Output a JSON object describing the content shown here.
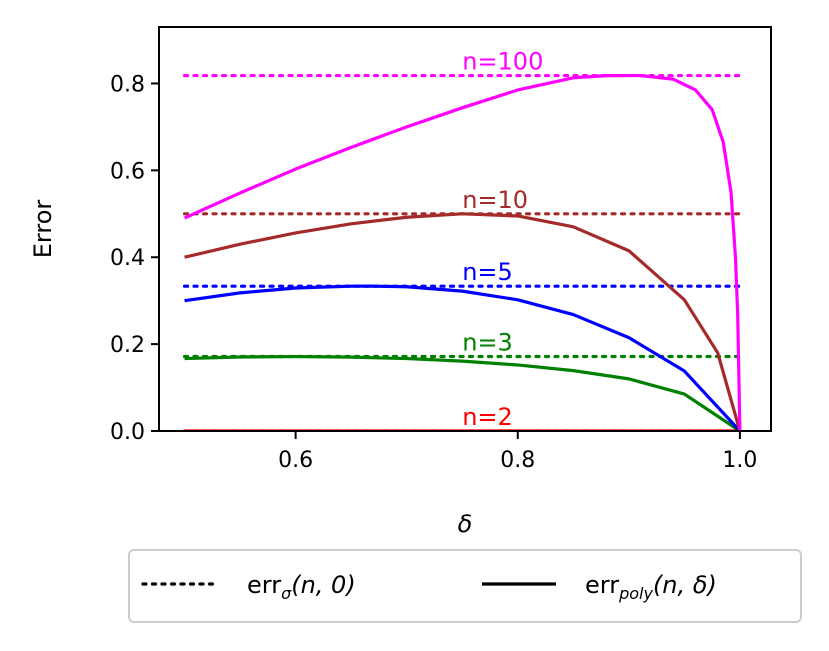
{
  "chart_data": {
    "type": "line",
    "xlabel": "δ",
    "ylabel": "Error",
    "xlim": [
      0.477,
      1.028
    ],
    "ylim": [
      0,
      0.93
    ],
    "xticks": [
      0.6,
      0.8,
      1.0
    ],
    "xtick_labels": [
      "0.6",
      "0.8",
      "1.0"
    ],
    "yticks": [
      0.0,
      0.2,
      0.4,
      0.6,
      0.8
    ],
    "ytick_labels": [
      "0.0",
      "0.2",
      "0.4",
      "0.6",
      "0.8"
    ],
    "grid": false,
    "legend_position": "below",
    "series": [
      {
        "n": 2,
        "label": "n=2",
        "color": "#ff0000",
        "sigma_error": 0.0,
        "poly_error": [
          [
            0.5,
            0.0
          ],
          [
            0.6,
            0.0
          ],
          [
            0.7,
            0.0
          ],
          [
            0.8,
            0.0
          ],
          [
            0.9,
            0.0
          ],
          [
            1.0,
            0.0
          ]
        ]
      },
      {
        "n": 3,
        "label": "n=3",
        "color": "#008000",
        "sigma_error": 0.1715,
        "poly_error": [
          [
            0.5,
            0.1667
          ],
          [
            0.55,
            0.1703
          ],
          [
            0.6,
            0.1714
          ],
          [
            0.65,
            0.17
          ],
          [
            0.7,
            0.1667
          ],
          [
            0.75,
            0.1608
          ],
          [
            0.8,
            0.152
          ],
          [
            0.85,
            0.139
          ],
          [
            0.9,
            0.12
          ],
          [
            0.95,
            0.085
          ],
          [
            1.0,
            0.0
          ]
        ]
      },
      {
        "n": 5,
        "label": "n=5",
        "color": "#0000ff",
        "sigma_error": 0.3333,
        "poly_error": [
          [
            0.5,
            0.3
          ],
          [
            0.55,
            0.318
          ],
          [
            0.6,
            0.3292
          ],
          [
            0.65,
            0.3333
          ],
          [
            0.667,
            0.3335
          ],
          [
            0.7,
            0.332
          ],
          [
            0.75,
            0.322
          ],
          [
            0.8,
            0.302
          ],
          [
            0.85,
            0.268
          ],
          [
            0.9,
            0.215
          ],
          [
            0.95,
            0.138
          ],
          [
            1.0,
            0.0
          ]
        ]
      },
      {
        "n": 10,
        "label": "n=10",
        "color": "#a52a2a",
        "sigma_error": 0.5,
        "poly_error": [
          [
            0.5,
            0.4
          ],
          [
            0.55,
            0.43
          ],
          [
            0.6,
            0.456
          ],
          [
            0.65,
            0.477
          ],
          [
            0.7,
            0.492
          ],
          [
            0.75,
            0.5
          ],
          [
            0.8,
            0.495
          ],
          [
            0.85,
            0.47
          ],
          [
            0.9,
            0.415
          ],
          [
            0.95,
            0.302
          ],
          [
            0.98,
            0.18
          ],
          [
            1.0,
            0.0
          ]
        ]
      },
      {
        "n": 100,
        "label": "n=100",
        "color": "#ff00ff",
        "sigma_error": 0.8182,
        "poly_error": [
          [
            0.5,
            0.4902
          ],
          [
            0.55,
            0.548
          ],
          [
            0.6,
            0.603
          ],
          [
            0.65,
            0.653
          ],
          [
            0.7,
            0.7
          ],
          [
            0.75,
            0.744
          ],
          [
            0.8,
            0.785
          ],
          [
            0.85,
            0.813
          ],
          [
            0.88,
            0.818
          ],
          [
            0.91,
            0.8182
          ],
          [
            0.94,
            0.81
          ],
          [
            0.96,
            0.785
          ],
          [
            0.975,
            0.74
          ],
          [
            0.985,
            0.665
          ],
          [
            0.992,
            0.55
          ],
          [
            0.996,
            0.4
          ],
          [
            0.998,
            0.27
          ],
          [
            1.0,
            0.0
          ]
        ]
      }
    ],
    "curve_label_x": 0.75,
    "legend": [
      {
        "style": "dotted",
        "label_main": "err",
        "label_sub": "σ",
        "label_args": "(n, 0)"
      },
      {
        "style": "solid",
        "label_main": "err",
        "label_sub": "poly",
        "label_args": "(n, δ)"
      }
    ]
  }
}
